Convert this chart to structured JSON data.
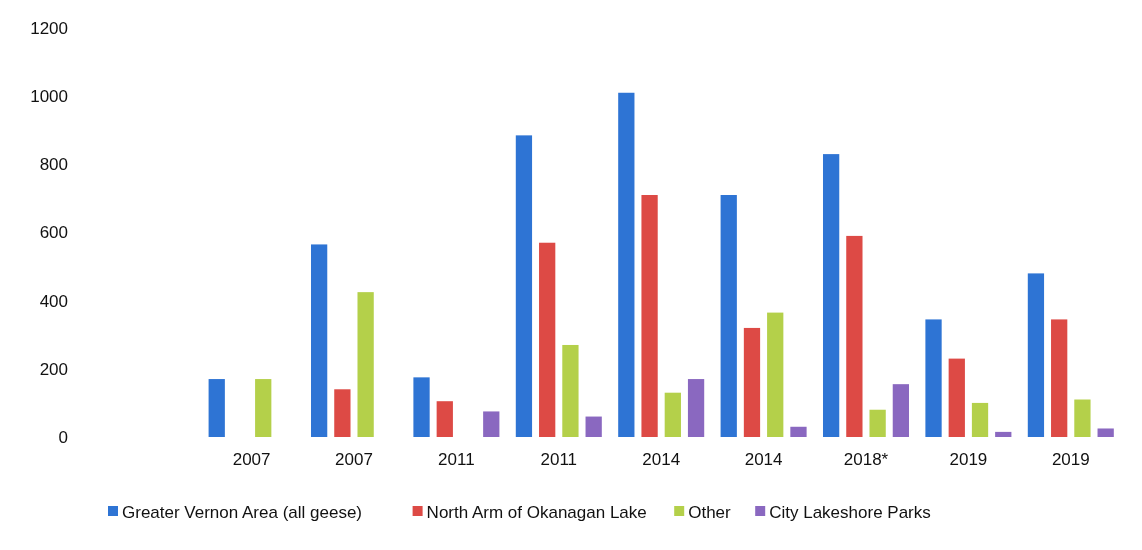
{
  "chart_data": {
    "type": "bar",
    "categories": [
      null,
      "2007",
      "2007",
      "2011",
      "2011",
      "2014",
      "2014",
      "2018*",
      "2019",
      "2019"
    ],
    "series": [
      {
        "name": "Greater Vernon Area (all geese)",
        "color": "#2e74d4",
        "values": [
          null,
          170,
          565,
          175,
          885,
          1010,
          710,
          830,
          345,
          480
        ]
      },
      {
        "name": "North Arm of Okanagan Lake",
        "color": "#dd4a45",
        "values": [
          null,
          null,
          140,
          105,
          570,
          710,
          320,
          590,
          230,
          345
        ]
      },
      {
        "name": "Other",
        "color": "#b4d04a",
        "values": [
          null,
          170,
          425,
          null,
          270,
          130,
          365,
          80,
          100,
          110
        ]
      },
      {
        "name": "City Lakeshore Parks",
        "color": "#8a68c0",
        "values": [
          null,
          null,
          null,
          75,
          60,
          170,
          30,
          155,
          15,
          25
        ]
      }
    ],
    "ylim": [
      0,
      1200
    ],
    "yticks": [
      0,
      200,
      400,
      600,
      800,
      1000,
      1200
    ],
    "grid": false,
    "legend": "bottom"
  }
}
